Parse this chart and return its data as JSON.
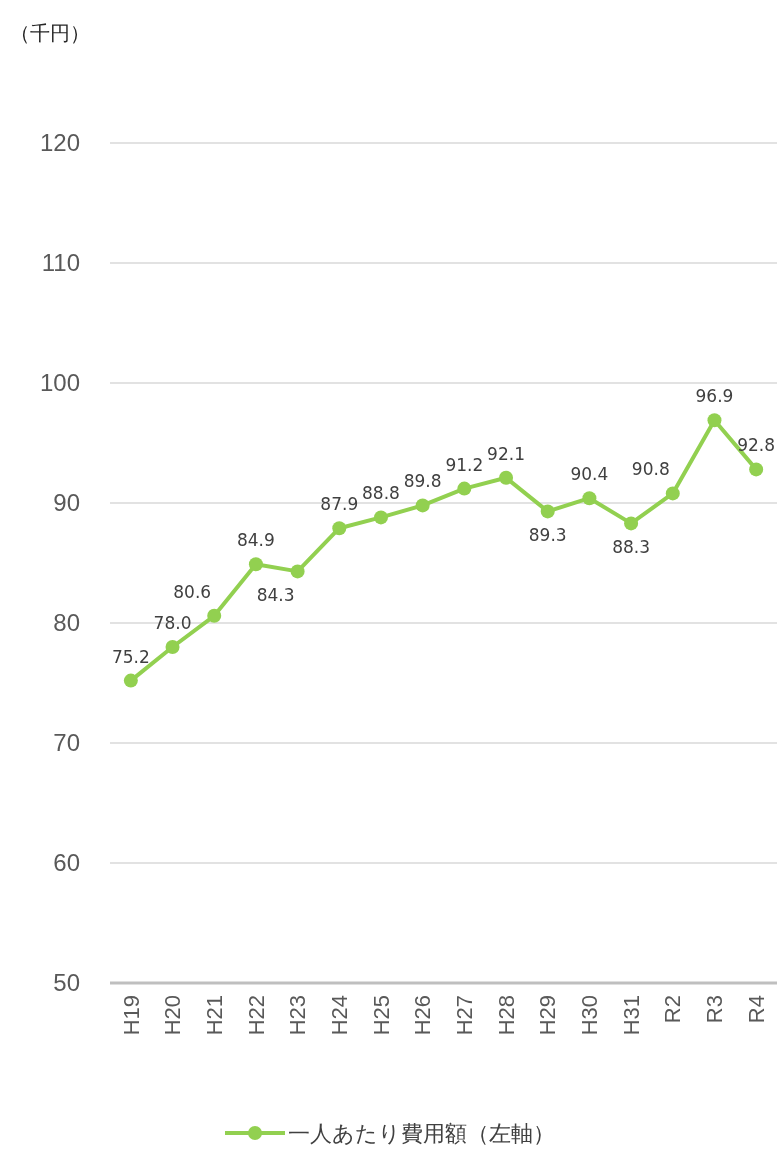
{
  "chart_data": {
    "type": "line",
    "ylabel": "（千円）",
    "categories": [
      "H19",
      "H20",
      "H21",
      "H22",
      "H23",
      "H24",
      "H25",
      "H26",
      "H27",
      "H28",
      "H29",
      "H30",
      "H31",
      "R2",
      "R3",
      "R4"
    ],
    "series": [
      {
        "name": "一人あたり費用額（左軸）",
        "color": "#92d050",
        "values": [
          75.2,
          78.0,
          80.6,
          84.9,
          84.3,
          87.9,
          88.8,
          89.8,
          91.2,
          92.1,
          89.3,
          90.4,
          88.3,
          90.8,
          96.9,
          92.8
        ]
      }
    ],
    "ylim": [
      50,
      120
    ],
    "yticks": [
      50,
      60,
      70,
      80,
      90,
      100,
      110,
      120
    ],
    "value_labels": [
      "75.2",
      "78.0",
      "80.6",
      "84.9",
      "84.3",
      "87.9",
      "88.8",
      "89.8",
      "91.2",
      "92.1",
      "89.3",
      "90.4",
      "88.3",
      "90.8",
      "96.9",
      "92.8"
    ],
    "grid": "y",
    "legend": "bottom",
    "marker": "circle",
    "line_style": "solid"
  }
}
